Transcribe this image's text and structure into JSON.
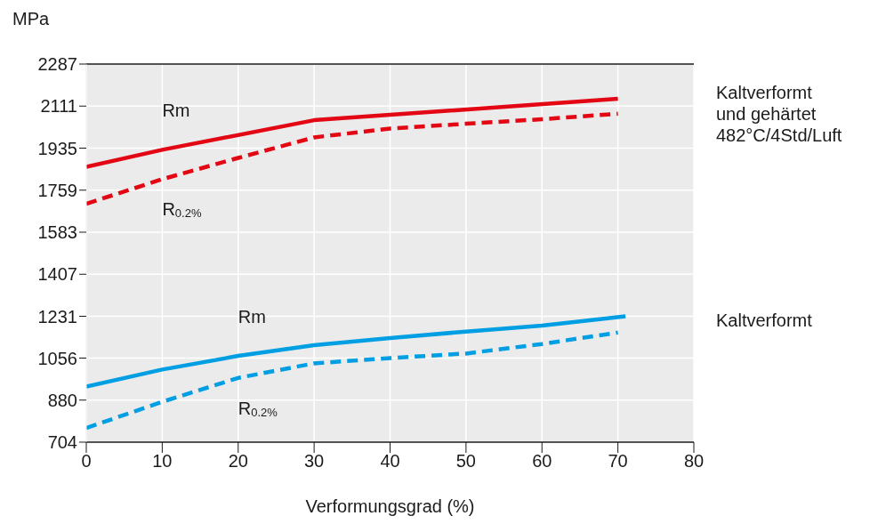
{
  "chart_data": {
    "type": "line",
    "xlabel": "Verformungsgrad (%)",
    "ylabel": "MPa",
    "xlim": [
      0,
      80
    ],
    "xticks": [
      0,
      10,
      20,
      30,
      40,
      50,
      60,
      70,
      80
    ],
    "ylim": [
      704,
      2287
    ],
    "yticks": [
      704,
      880,
      1056,
      1231,
      1407,
      1583,
      1759,
      1935,
      2111,
      2287
    ],
    "grid": true,
    "marker": "none",
    "series": [
      {
        "name": "Rm",
        "color": "#e30613",
        "line_style": "solid",
        "x": [
          0,
          10,
          30,
          70
        ],
        "values": [
          1857,
          1928,
          2052,
          2142
        ]
      },
      {
        "name": "R$_{0.2%}$",
        "color": "#e30613",
        "line_style": "dashed",
        "x": [
          0,
          10,
          20,
          30,
          40,
          50,
          60,
          70
        ],
        "values": [
          1702,
          1805,
          1894,
          1980,
          2017,
          2037,
          2056,
          2079
        ]
      },
      {
        "name": "Rm",
        "color": "#009fe3",
        "line_style": "solid",
        "x": [
          0,
          10,
          20,
          30,
          40,
          50,
          60,
          65,
          71
        ],
        "values": [
          937,
          1008,
          1065,
          1110,
          1140,
          1167,
          1192,
          1210,
          1231
        ]
      },
      {
        "name": "R$_{0.2%}$",
        "color": "#009fe3",
        "line_style": "dashed",
        "x": [
          0,
          10,
          20,
          30,
          40,
          50,
          60,
          70
        ],
        "values": [
          763,
          873,
          973,
          1034,
          1056,
          1075,
          1115,
          1163
        ]
      }
    ],
    "annotations": [
      "Kaltverformt\nund gehärtet\n482°C/4Std/Luft",
      "Kaltverformt"
    ]
  }
}
